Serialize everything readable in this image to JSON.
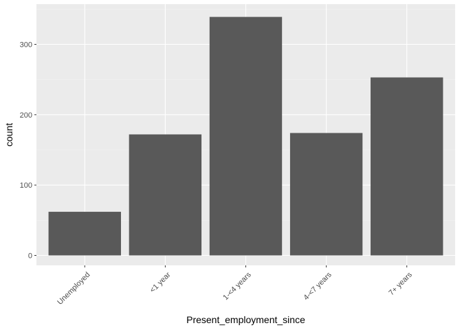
{
  "chart_data": {
    "type": "bar",
    "title": "",
    "xlabel": "Present_employment_since",
    "ylabel": "count",
    "categories": [
      "Unemployed",
      "<1 year",
      "1-<4 years",
      "4-<7 years",
      "7+ years"
    ],
    "values": [
      62,
      172,
      339,
      174,
      253
    ],
    "ylim": [
      0,
      356
    ],
    "yticks": [
      0,
      100,
      200,
      300
    ],
    "grid": true,
    "legend": "none"
  },
  "colors": {
    "panel": "#ebebeb",
    "grid_major": "#ffffff",
    "grid_minor": "#f4f4f4",
    "bar": "#595959",
    "tick": "#333333",
    "text": "#4d4d4d"
  }
}
